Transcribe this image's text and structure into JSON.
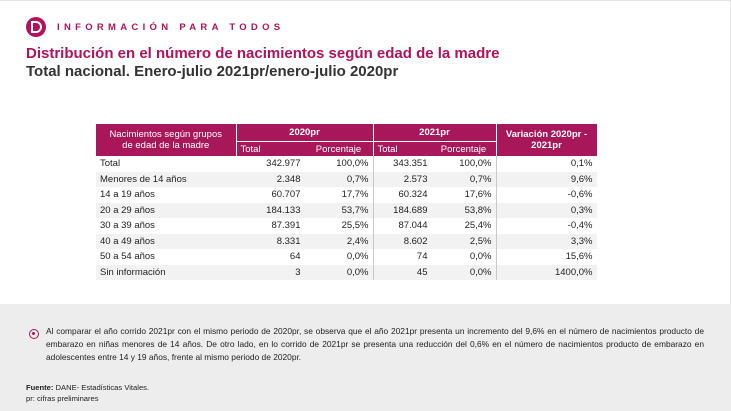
{
  "header": {
    "text": "INFORMACIÓN PARA TODOS"
  },
  "title": "Distribución en el número de nacimientos según edad de la madre",
  "subtitle": "Total nacional. Enero-julio 2021pr/enero-julio 2020pr",
  "table": {
    "group_header_line1": "Nacimientos según grupos",
    "group_header_line2": "de edad de la madre",
    "year1": "2020pr",
    "year2": "2021pr",
    "var_line1": "Variación 2020pr -",
    "var_line2": "2021pr",
    "col_total": "Total",
    "col_pct": "Porcentaje",
    "rows": [
      {
        "label": "Total",
        "t1": "342.977",
        "p1": "100,0%",
        "t2": "343.351",
        "p2": "100,0%",
        "var": "0,1%"
      },
      {
        "label": "Menores de 14 años",
        "t1": "2.348",
        "p1": "0,7%",
        "t2": "2.573",
        "p2": "0,7%",
        "var": "9,6%"
      },
      {
        "label": "14 a 19 años",
        "t1": "60.707",
        "p1": "17,7%",
        "t2": "60.324",
        "p2": "17,6%",
        "var": "-0,6%"
      },
      {
        "label": "20 a 29 años",
        "t1": "184.133",
        "p1": "53,7%",
        "t2": "184.689",
        "p2": "53,8%",
        "var": "0,3%"
      },
      {
        "label": "30 a 39 años",
        "t1": "87.391",
        "p1": "25,5%",
        "t2": "87.044",
        "p2": "25,4%",
        "var": "-0,4%"
      },
      {
        "label": "40 a 49 años",
        "t1": "8.331",
        "p1": "2,4%",
        "t2": "8.602",
        "p2": "2,5%",
        "var": "3,3%"
      },
      {
        "label": "50 a 54 años",
        "t1": "64",
        "p1": "0,0%",
        "t2": "74",
        "p2": "0,0%",
        "var": "15,6%"
      },
      {
        "label": "Sin información",
        "t1": "3",
        "p1": "0,0%",
        "t2": "45",
        "p2": "0,0%",
        "var": "1400,0%"
      }
    ]
  },
  "note": "Al comparar el año corrido 2021pr con el mismo periodo de 2020pr, se observa que el año 2021pr presenta un incremento del 9,6% en el número de nacimientos producto de embarazo en niñas menores de 14 años. De otro lado, en lo corrido de 2021pr se presenta una reducción del 0,6% en el número de nacimientos producto de embarazo en adolescentes entre 14 y 19 años, frente al mismo periodo de 2020pr.",
  "source": {
    "label": "Fuente:",
    "text": " DANE- Estadísticas Vitales.",
    "footnote": "pr: cifras preliminares"
  },
  "colors": {
    "accent": "#b1125b",
    "header_bg": "#a8175a",
    "band": "#ededed"
  }
}
